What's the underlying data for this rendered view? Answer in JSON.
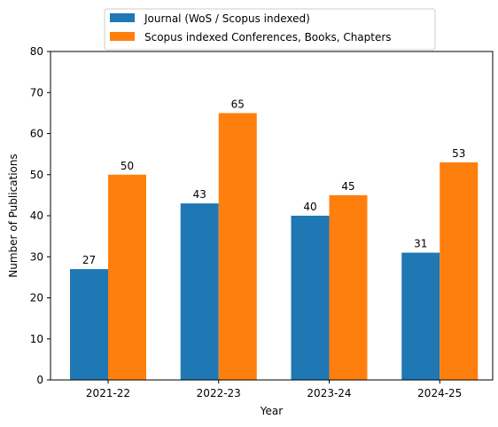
{
  "chart_data": {
    "type": "bar",
    "title": "",
    "xlabel": "Year",
    "ylabel": "Number of Publications",
    "categories": [
      "2021-22",
      "2022-23",
      "2023-24",
      "2024-25"
    ],
    "series": [
      {
        "name": "Journal (WoS / Scopus indexed)",
        "color": "#1f77b4",
        "values": [
          27,
          43,
          40,
          31
        ]
      },
      {
        "name": "Scopus indexed Conferences, Books, Chapters",
        "color": "#ff7f0e",
        "values": [
          50,
          65,
          45,
          53
        ]
      }
    ],
    "ylim": [
      0,
      80
    ],
    "yticks": [
      0,
      10,
      20,
      30,
      40,
      50,
      60,
      70,
      80
    ],
    "grid": false,
    "legend_position": "top-center"
  }
}
